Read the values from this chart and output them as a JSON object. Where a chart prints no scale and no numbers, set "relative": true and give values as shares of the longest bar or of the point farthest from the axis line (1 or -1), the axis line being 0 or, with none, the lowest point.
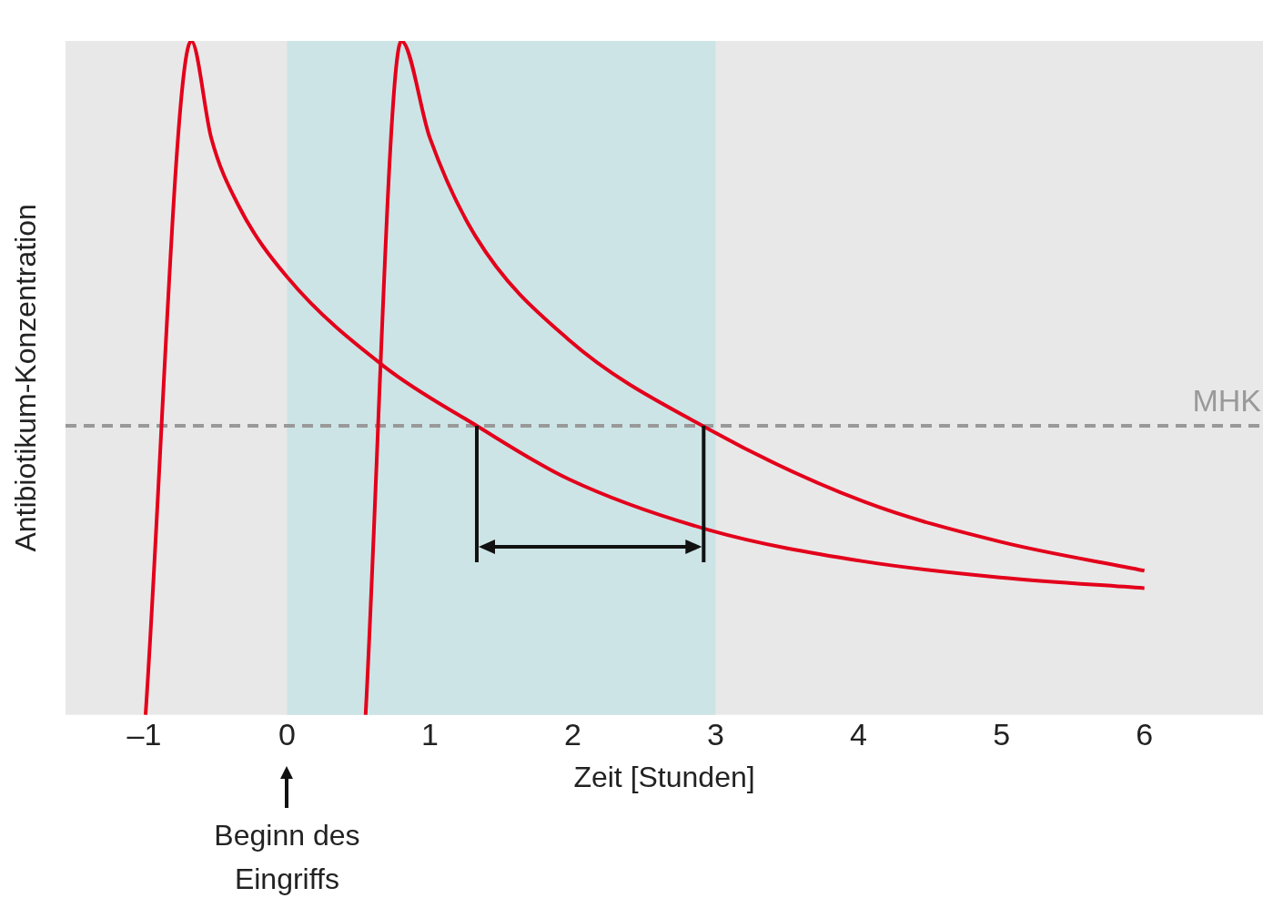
{
  "chart_data": {
    "type": "line",
    "relative": true,
    "xlabel": "Zeit [Stunden]",
    "ylabel": "Antibiotikum-Konzentration",
    "xlim": [
      -1.55,
      6.83
    ],
    "xticks": [
      {
        "value": -1,
        "label": "–1"
      },
      0,
      1,
      2,
      3,
      4,
      5,
      6
    ],
    "series": [
      {
        "color": "#e3001b",
        "x": [
          -0.99,
          -0.67,
          -0.53,
          -0.34,
          0,
          0.68,
          1.32,
          1.97,
          2.96,
          4.03,
          4.99,
          6.0
        ],
        "values": [
          0,
          1,
          0.856,
          0.756,
          0.65,
          0.517,
          0.43,
          0.35,
          0.274,
          0.228,
          0.204,
          0.188
        ]
      },
      {
        "color": "#e3001b",
        "x": [
          0.55,
          0.8,
          1.0,
          1.32,
          1.97,
          2.96,
          4.03,
          4.99,
          6.0
        ],
        "values": [
          0,
          1,
          0.856,
          0.71,
          0.557,
          0.423,
          0.317,
          0.257,
          0.214
        ]
      }
    ],
    "marker": "none",
    "line_style": "solid",
    "grid": false,
    "legend": false,
    "ref_lines": [
      {
        "axis": "y",
        "value": 0.429,
        "label": "MHK",
        "color": "#999999",
        "line_style": "dashed"
      }
    ],
    "bands": [
      {
        "axis": "x",
        "from": 0,
        "to": 3,
        "color": "#cce4e6"
      }
    ],
    "annotations": [
      "Beginn des Eingriffs"
    ]
  }
}
